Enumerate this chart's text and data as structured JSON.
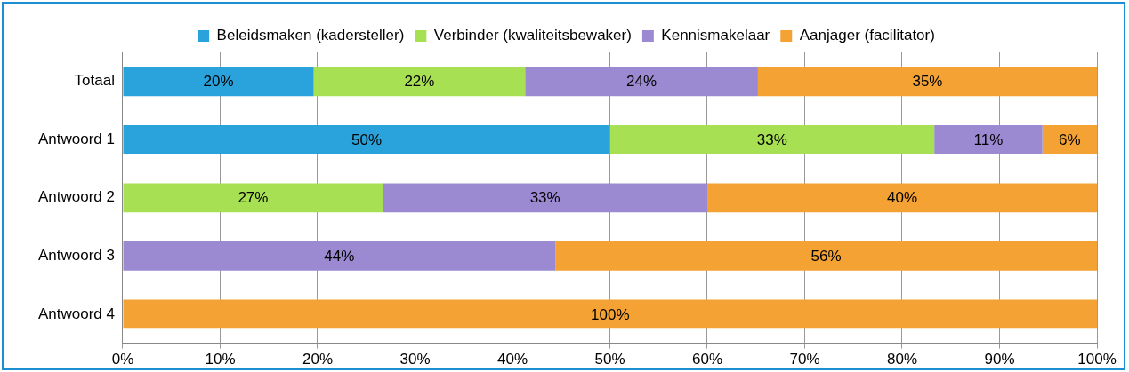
{
  "chart_data": {
    "type": "bar",
    "orientation": "horizontal",
    "stacked": true,
    "categories": [
      "Totaal",
      "Antwoord 1",
      "Antwoord 2",
      "Antwoord 3",
      "Antwoord 4"
    ],
    "series": [
      {
        "name": "Beleidsmaken (kadersteller)",
        "color": "#2aa3dc",
        "values": [
          19.6,
          50,
          0,
          0,
          0
        ],
        "value_labels": [
          "20%",
          "50%",
          null,
          null,
          null
        ]
      },
      {
        "name": "Verbinder (kwaliteitsbewaker)",
        "color": "#a8e053",
        "values": [
          21.7,
          33.3,
          26.7,
          0,
          0
        ],
        "value_labels": [
          "22%",
          "33%",
          "27%",
          null,
          null
        ]
      },
      {
        "name": "Kennismakelaar",
        "color": "#9b8ad2",
        "values": [
          23.9,
          11.1,
          33.3,
          44.4,
          0
        ],
        "value_labels": [
          "24%",
          "11%",
          "33%",
          "44%",
          null
        ]
      },
      {
        "name": "Aanjager (facilitator)",
        "color": "#f4a233",
        "values": [
          34.8,
          5.6,
          40,
          55.6,
          100
        ],
        "value_labels": [
          "35%",
          "6%",
          "40%",
          "56%",
          "100%"
        ]
      }
    ],
    "xlim": [
      0,
      100
    ],
    "xticks": [
      {
        "value": 0,
        "label": "0%"
      },
      {
        "value": 10,
        "label": "10%"
      },
      {
        "value": 20,
        "label": "20%"
      },
      {
        "value": 30,
        "label": "30%"
      },
      {
        "value": 40,
        "label": "40%"
      },
      {
        "value": 50,
        "label": "50%"
      },
      {
        "value": 60,
        "label": "60%"
      },
      {
        "value": 70,
        "label": "70%"
      },
      {
        "value": 80,
        "label": "80%"
      },
      {
        "value": 90,
        "label": "90%"
      },
      {
        "value": 100,
        "label": "100%"
      }
    ],
    "grid": "x",
    "legend": "top"
  }
}
